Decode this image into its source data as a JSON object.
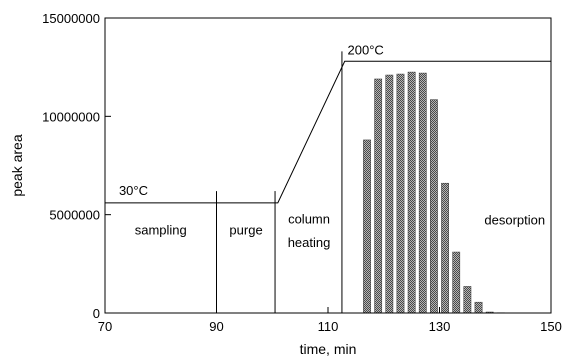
{
  "chart_data": {
    "type": "bar",
    "xlabel": "time, min",
    "ylabel": "peak area",
    "xlim": [
      70,
      150
    ],
    "ylim": [
      0,
      15000000
    ],
    "x_ticks": [
      {
        "value": 70,
        "label": "70"
      },
      {
        "value": 90,
        "label": "90"
      },
      {
        "value": 110,
        "label": "110"
      },
      {
        "value": 130,
        "label": "130"
      },
      {
        "value": 150,
        "label": "150"
      }
    ],
    "y_ticks": [
      {
        "value": 0,
        "label": "0"
      },
      {
        "value": 5000000,
        "label": "5000000"
      },
      {
        "value": 10000000,
        "label": "10000000"
      },
      {
        "value": 15000000,
        "label": "15000000"
      }
    ],
    "bars": {
      "x": [
        117,
        119,
        121,
        123,
        125,
        127,
        129,
        131,
        133,
        135,
        137,
        139,
        141
      ],
      "values": [
        8800000,
        11900000,
        12100000,
        12150000,
        12250000,
        12200000,
        10850000,
        6600000,
        3100000,
        1350000,
        550000,
        50000,
        15000
      ],
      "width": 1.3,
      "color": "#8a8a8a"
    },
    "temperature_profile": {
      "x": [
        70,
        101,
        113,
        150
      ],
      "y": [
        5600000,
        5600000,
        12800000,
        12800000
      ]
    },
    "phase_boundaries": [
      90,
      100.5,
      112.5
    ],
    "phase_boundary_tops": [
      6200000,
      6200000,
      13300000
    ],
    "annotations": [
      {
        "text": "30°C",
        "x": 72.5,
        "y": 6000000
      },
      {
        "text": "200°C",
        "x": 113.5,
        "y": 13150000
      },
      {
        "text": "sampling",
        "x": 80,
        "y": 4000000,
        "anchor": "middle"
      },
      {
        "text": "purge",
        "x": 95.3,
        "y": 4000000,
        "anchor": "middle"
      },
      {
        "text": "column",
        "x": 106.6,
        "y": 4550000,
        "anchor": "middle"
      },
      {
        "text": "heating",
        "x": 106.6,
        "y": 3350000,
        "anchor": "middle"
      },
      {
        "text": "desorption",
        "x": 143.5,
        "y": 4500000,
        "anchor": "middle"
      }
    ],
    "grid": false,
    "legend": "none"
  }
}
